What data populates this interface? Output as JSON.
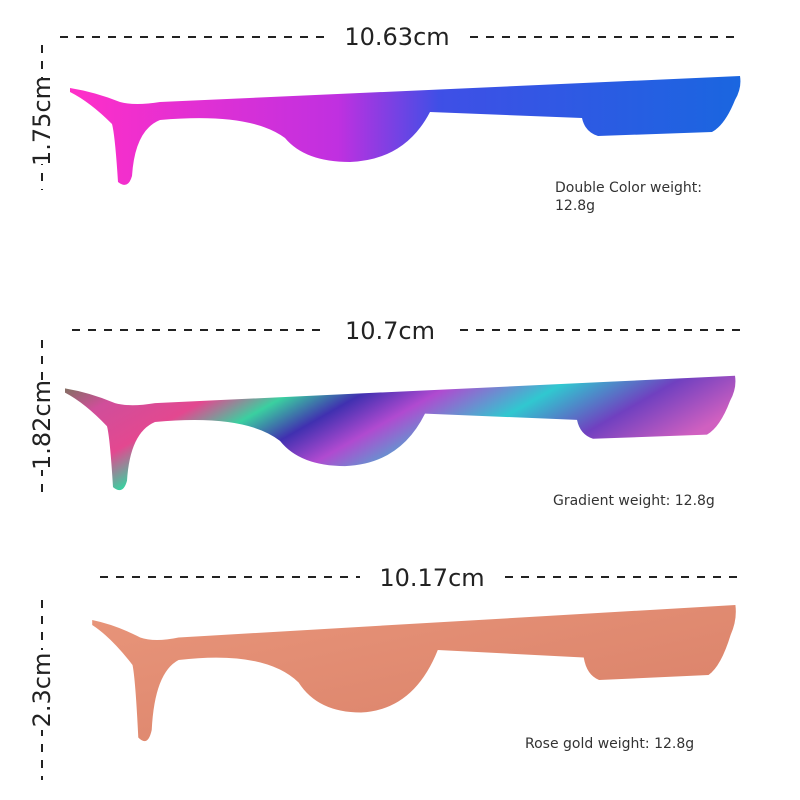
{
  "items": [
    {
      "length": "10.63cm",
      "height": "1.75cm",
      "weight_lines": [
        "Double Color weight:",
        "12.8g"
      ]
    },
    {
      "length": "10.7cm",
      "height": "1.82cm",
      "weight_lines": [
        "Gradient weight: 12.8g"
      ]
    },
    {
      "length": "10.17cm",
      "height": "2.3cm",
      "weight_lines": [
        "Rose gold weight: 12.8g"
      ]
    }
  ]
}
